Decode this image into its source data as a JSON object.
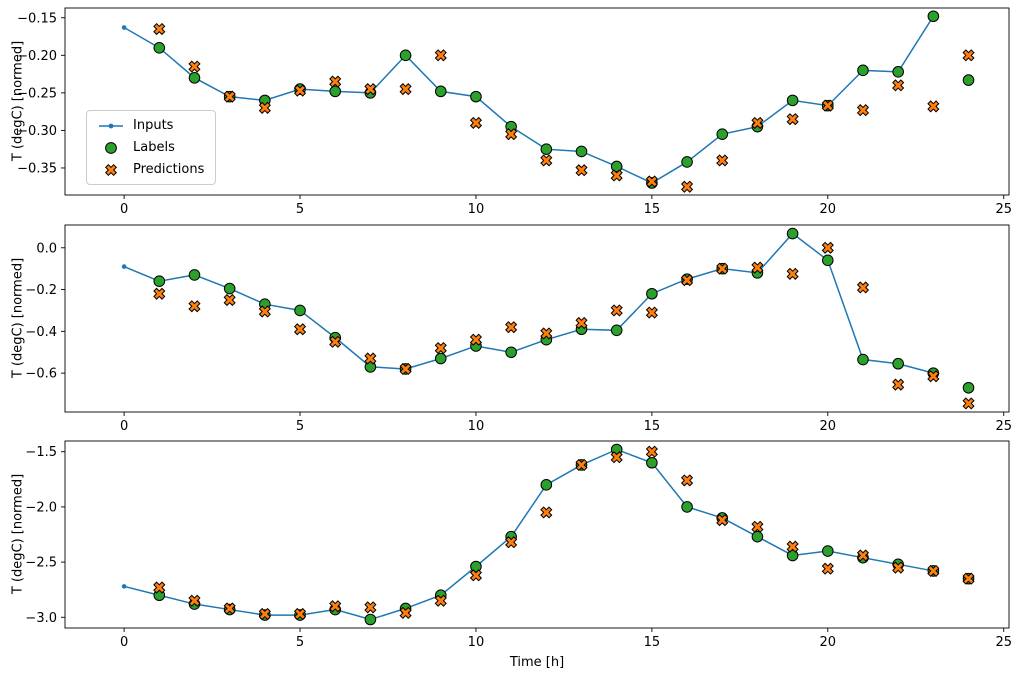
{
  "figure": {
    "xlabel": "Time [h]",
    "ylabel": "T (degC) [normed]",
    "background": "#ffffff",
    "xticks": [
      0,
      5,
      10,
      15,
      20,
      25
    ],
    "xtick_labels": [
      "0",
      "5",
      "10",
      "15",
      "20",
      "25"
    ],
    "xlim": [
      -1.68,
      25.15
    ],
    "legend": {
      "position": "center-left-of-first-subplot",
      "entries": [
        {
          "label": "Inputs",
          "marker": "line-dot",
          "color": "#1f77b4"
        },
        {
          "label": "Labels",
          "marker": "filled-circle",
          "color": "#2ca02c",
          "edge": "#000000"
        },
        {
          "label": "Predictions",
          "marker": "filled-x",
          "color": "#ff7f0e",
          "edge": "#000000"
        }
      ]
    }
  },
  "chart_data": [
    {
      "type": "line",
      "title": "",
      "ylabel": "T (degC) [normed]",
      "ylim": [
        -0.386,
        -0.137
      ],
      "yticks": [
        -0.15,
        -0.2,
        -0.25,
        -0.3,
        -0.35
      ],
      "ytick_labels": [
        "−0.15",
        "−0.20",
        "−0.25",
        "−0.30",
        "−0.35"
      ],
      "series": [
        {
          "name": "Inputs",
          "style": "line-dot",
          "color": "#1f77b4",
          "x": [
            0,
            1,
            2,
            3,
            4,
            5,
            6,
            7,
            8,
            9,
            10,
            11,
            12,
            13,
            14,
            15,
            16,
            17,
            18,
            19,
            20,
            21,
            22,
            23
          ],
          "y": [
            -0.163,
            -0.19,
            -0.23,
            -0.255,
            -0.26,
            -0.245,
            -0.248,
            -0.25,
            -0.2,
            -0.248,
            -0.255,
            -0.295,
            -0.325,
            -0.328,
            -0.348,
            -0.37,
            -0.342,
            -0.305,
            -0.295,
            -0.26,
            -0.267,
            -0.22,
            -0.222,
            -0.148
          ]
        },
        {
          "name": "Labels",
          "style": "scatter-circle",
          "color": "#2ca02c",
          "edge": "#000000",
          "x": [
            1,
            2,
            3,
            4,
            5,
            6,
            7,
            8,
            9,
            10,
            11,
            12,
            13,
            14,
            15,
            16,
            17,
            18,
            19,
            20,
            21,
            22,
            23,
            24
          ],
          "y": [
            -0.19,
            -0.23,
            -0.255,
            -0.26,
            -0.245,
            -0.248,
            -0.25,
            -0.2,
            -0.248,
            -0.255,
            -0.295,
            -0.325,
            -0.328,
            -0.348,
            -0.37,
            -0.342,
            -0.305,
            -0.295,
            -0.26,
            -0.267,
            -0.22,
            -0.222,
            -0.148,
            -0.233
          ]
        },
        {
          "name": "Predictions",
          "style": "scatter-x",
          "color": "#ff7f0e",
          "edge": "#000000",
          "x": [
            1,
            2,
            3,
            4,
            5,
            6,
            7,
            8,
            9,
            10,
            11,
            12,
            13,
            14,
            15,
            16,
            17,
            18,
            19,
            20,
            21,
            22,
            23,
            24
          ],
          "y": [
            -0.165,
            -0.215,
            -0.255,
            -0.27,
            -0.247,
            -0.235,
            -0.245,
            -0.245,
            -0.2,
            -0.29,
            -0.305,
            -0.34,
            -0.353,
            -0.36,
            -0.368,
            -0.375,
            -0.34,
            -0.29,
            -0.285,
            -0.267,
            -0.273,
            -0.24,
            -0.268,
            -0.2
          ]
        }
      ]
    },
    {
      "type": "line",
      "title": "",
      "ylabel": "T (degC) [normed]",
      "ylim": [
        -0.786,
        0.109
      ],
      "yticks": [
        0.0,
        -0.2,
        -0.4,
        -0.6
      ],
      "ytick_labels": [
        "0.0",
        "−0.2",
        "−0.4",
        "−0.6"
      ],
      "series": [
        {
          "name": "Inputs",
          "style": "line-dot",
          "color": "#1f77b4",
          "x": [
            0,
            1,
            2,
            3,
            4,
            5,
            6,
            7,
            8,
            9,
            10,
            11,
            12,
            13,
            14,
            15,
            16,
            17,
            18,
            19,
            20,
            21,
            22,
            23
          ],
          "y": [
            -0.09,
            -0.16,
            -0.13,
            -0.195,
            -0.27,
            -0.3,
            -0.43,
            -0.57,
            -0.58,
            -0.53,
            -0.47,
            -0.5,
            -0.44,
            -0.39,
            -0.395,
            -0.22,
            -0.15,
            -0.1,
            -0.12,
            0.068,
            -0.06,
            -0.535,
            -0.555,
            -0.6
          ]
        },
        {
          "name": "Labels",
          "style": "scatter-circle",
          "color": "#2ca02c",
          "edge": "#000000",
          "x": [
            1,
            2,
            3,
            4,
            5,
            6,
            7,
            8,
            9,
            10,
            11,
            12,
            13,
            14,
            15,
            16,
            17,
            18,
            19,
            20,
            21,
            22,
            23,
            24
          ],
          "y": [
            -0.16,
            -0.13,
            -0.195,
            -0.27,
            -0.3,
            -0.43,
            -0.57,
            -0.58,
            -0.53,
            -0.47,
            -0.5,
            -0.44,
            -0.39,
            -0.395,
            -0.22,
            -0.15,
            -0.1,
            -0.12,
            0.068,
            -0.06,
            -0.535,
            -0.555,
            -0.6,
            -0.67
          ]
        },
        {
          "name": "Predictions",
          "style": "scatter-x",
          "color": "#ff7f0e",
          "edge": "#000000",
          "x": [
            1,
            2,
            3,
            4,
            5,
            6,
            7,
            8,
            9,
            10,
            11,
            12,
            13,
            14,
            15,
            16,
            17,
            18,
            19,
            20,
            21,
            22,
            23,
            24
          ],
          "y": [
            -0.22,
            -0.28,
            -0.25,
            -0.305,
            -0.39,
            -0.45,
            -0.53,
            -0.58,
            -0.48,
            -0.44,
            -0.38,
            -0.41,
            -0.36,
            -0.3,
            -0.31,
            -0.155,
            -0.1,
            -0.095,
            -0.125,
            0.0,
            -0.19,
            -0.655,
            -0.615,
            -0.745
          ]
        }
      ]
    },
    {
      "type": "line",
      "title": "",
      "ylabel": "T (degC) [normed]",
      "ylim": [
        -3.097,
        -1.403
      ],
      "yticks": [
        -1.5,
        -2.0,
        -2.5,
        -3.0
      ],
      "ytick_labels": [
        "−1.5",
        "−2.0",
        "−2.5",
        "−3.0"
      ],
      "series": [
        {
          "name": "Inputs",
          "style": "line-dot",
          "color": "#1f77b4",
          "x": [
            0,
            1,
            2,
            3,
            4,
            5,
            6,
            7,
            8,
            9,
            10,
            11,
            12,
            13,
            14,
            15,
            16,
            17,
            18,
            19,
            20,
            21,
            22,
            23
          ],
          "y": [
            -2.72,
            -2.8,
            -2.88,
            -2.93,
            -2.98,
            -2.98,
            -2.93,
            -3.02,
            -2.92,
            -2.8,
            -2.54,
            -2.27,
            -1.8,
            -1.62,
            -1.48,
            -1.6,
            -2.0,
            -2.1,
            -2.27,
            -2.44,
            -2.4,
            -2.46,
            -2.52,
            -2.58
          ]
        },
        {
          "name": "Labels",
          "style": "scatter-circle",
          "color": "#2ca02c",
          "edge": "#000000",
          "x": [
            1,
            2,
            3,
            4,
            5,
            6,
            7,
            8,
            9,
            10,
            11,
            12,
            13,
            14,
            15,
            16,
            17,
            18,
            19,
            20,
            21,
            22,
            23,
            24
          ],
          "y": [
            -2.8,
            -2.88,
            -2.93,
            -2.98,
            -2.98,
            -2.93,
            -3.02,
            -2.92,
            -2.8,
            -2.54,
            -2.27,
            -1.8,
            -1.62,
            -1.48,
            -1.6,
            -2.0,
            -2.1,
            -2.27,
            -2.44,
            -2.4,
            -2.46,
            -2.52,
            -2.58,
            -2.65
          ]
        },
        {
          "name": "Predictions",
          "style": "scatter-x",
          "color": "#ff7f0e",
          "edge": "#000000",
          "x": [
            1,
            2,
            3,
            4,
            5,
            6,
            7,
            8,
            9,
            10,
            11,
            12,
            13,
            14,
            15,
            16,
            17,
            18,
            19,
            20,
            21,
            22,
            23,
            24
          ],
          "y": [
            -2.73,
            -2.85,
            -2.92,
            -2.97,
            -2.97,
            -2.9,
            -2.91,
            -2.96,
            -2.85,
            -2.62,
            -2.32,
            -2.05,
            -1.62,
            -1.55,
            -1.5,
            -1.76,
            -2.12,
            -2.18,
            -2.36,
            -2.56,
            -2.44,
            -2.55,
            -2.58,
            -2.65
          ]
        }
      ]
    }
  ]
}
